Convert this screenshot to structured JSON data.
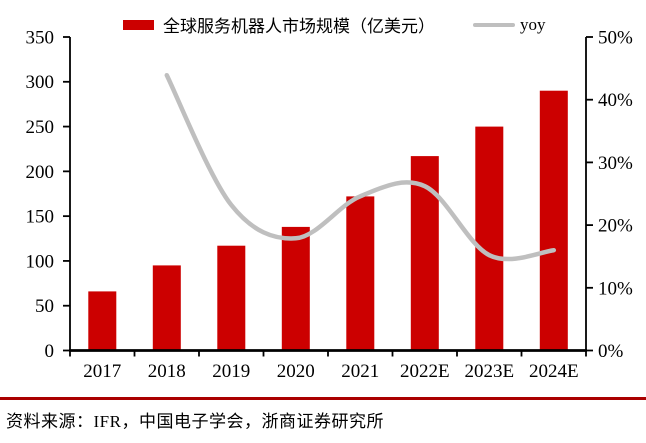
{
  "legend": {
    "bar_label": "全球服务机器人市场规模（亿美元）",
    "line_label": "yoy"
  },
  "colors": {
    "bar": "#CC0000",
    "line": "#BFBFBF",
    "separator": "#AA0000",
    "axis": "#000000",
    "text": "#000000"
  },
  "chart_data": {
    "type": "combo",
    "title": "",
    "categories": [
      "2017",
      "2018",
      "2019",
      "2020",
      "2021",
      "2022E",
      "2023E",
      "2024E"
    ],
    "series": [
      {
        "name": "全球服务机器人市场规模（亿美元）",
        "chart_type": "bar",
        "axis": "left",
        "values": [
          66,
          95,
          117,
          138,
          172,
          217,
          250,
          290
        ]
      },
      {
        "name": "yoy",
        "chart_type": "line",
        "axis": "right",
        "values": [
          null,
          43.9,
          23.2,
          17.9,
          24.6,
          26.2,
          15.2,
          16.0
        ]
      }
    ],
    "left_axis": {
      "min": 0,
      "max": 350,
      "step": 50,
      "tick_labels": [
        "0",
        "50",
        "100",
        "150",
        "200",
        "250",
        "300",
        "350"
      ]
    },
    "right_axis": {
      "min": 0,
      "max": 50,
      "step": 10,
      "tick_labels": [
        "0%",
        "10%",
        "20%",
        "30%",
        "40%",
        "50%"
      ],
      "unit": "percent"
    },
    "grid": false,
    "legend_position": "top-center",
    "line_smoothed": true
  },
  "source": {
    "text": "资料来源：IFR，中国电子学会，浙商证券研究所"
  }
}
